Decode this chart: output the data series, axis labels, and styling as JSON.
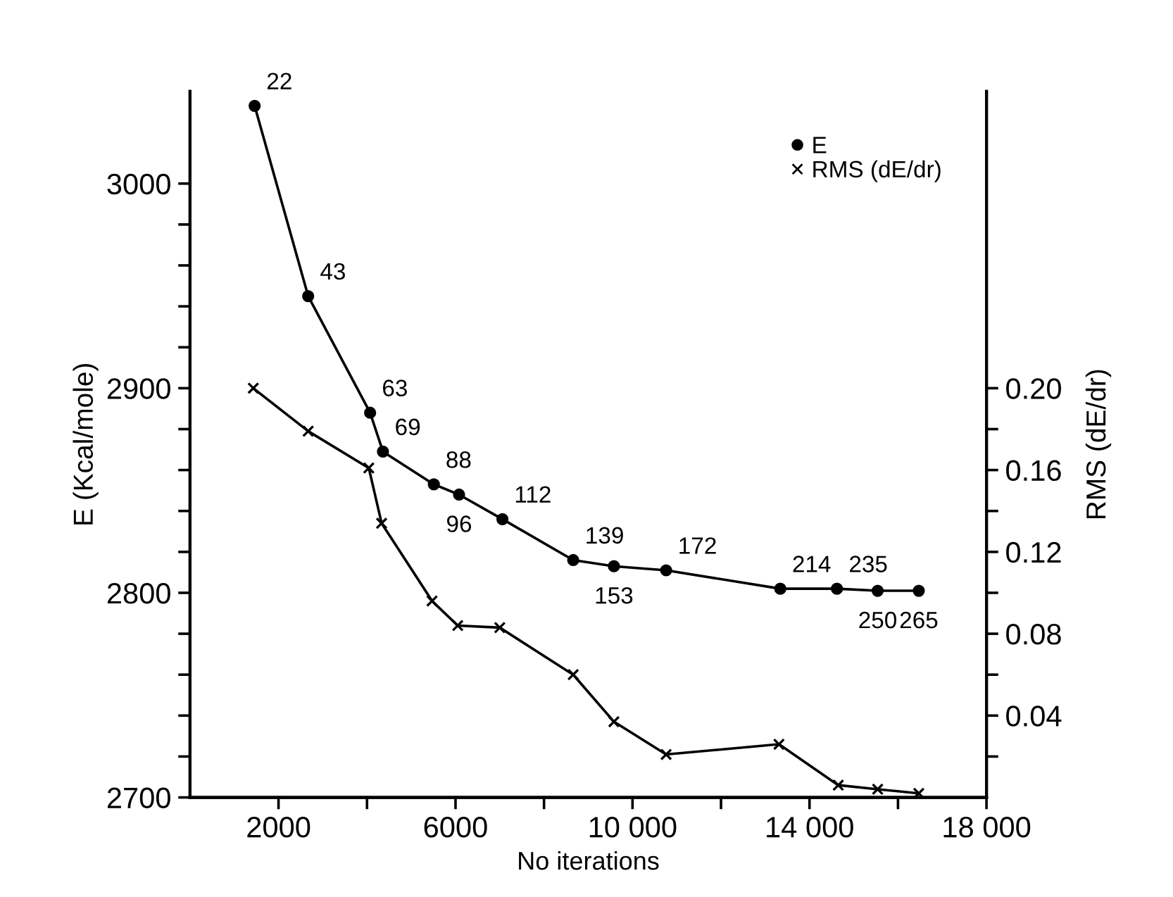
{
  "chart_data": {
    "type": "line",
    "xlabel": "No iterations",
    "ylabel": "E (Kcal/mole)",
    "y2label": "RMS (dE/dr)",
    "xlim": [
      0,
      18000
    ],
    "xticks": [
      2000,
      {
        "value": 4000,
        "label": null
      },
      6000,
      {
        "value": 8000,
        "label": null
      },
      {
        "value": 10000,
        "label": "10 000"
      },
      {
        "value": 12000,
        "label": null
      },
      {
        "value": 14000,
        "label": "14 000"
      },
      {
        "value": 16000,
        "label": null
      },
      {
        "value": 18000,
        "label": "18 000"
      }
    ],
    "ylim": [
      2700,
      3045
    ],
    "yticks": [
      2700,
      {
        "value": 2720,
        "label": null
      },
      {
        "value": 2740,
        "label": null
      },
      {
        "value": 2760,
        "label": null
      },
      {
        "value": 2780,
        "label": null
      },
      2800,
      {
        "value": 2820,
        "label": null
      },
      {
        "value": 2840,
        "label": null
      },
      {
        "value": 2860,
        "label": null
      },
      {
        "value": 2880,
        "label": null
      },
      2900,
      {
        "value": 2920,
        "label": null
      },
      {
        "value": 2940,
        "label": null
      },
      {
        "value": 2960,
        "label": null
      },
      {
        "value": 2980,
        "label": null
      },
      3000
    ],
    "y2lim": [
      0,
      0.345
    ],
    "y2ticks": [
      {
        "value": 0.02,
        "label": null
      },
      0.04,
      {
        "value": 0.06,
        "label": null
      },
      0.08,
      {
        "value": 0.1,
        "label": null
      },
      0.12,
      {
        "value": 0.14,
        "label": null
      },
      0.16,
      {
        "value": 0.18,
        "label": null
      },
      {
        "value": 0.2,
        "label": "0.20"
      }
    ],
    "legend": "top right",
    "grid": false,
    "series": [
      {
        "name": "E",
        "color": "#000000",
        "marker": "circle",
        "x": [
          1460,
          2670,
          4070,
          4360,
          5510,
          6080,
          7060,
          8660,
          9580,
          10760,
          13340,
          14620,
          15540,
          16470
        ],
        "values": [
          3038,
          2945,
          2888,
          2869,
          2853,
          2848,
          2836,
          2816,
          2813,
          2811,
          2802,
          2802,
          2801,
          2801
        ]
      },
      {
        "name": "RMS (dE/dr)",
        "color": "#000000",
        "marker": "cross",
        "axis": "y2",
        "x": [
          1430,
          2670,
          4040,
          4330,
          5470,
          6050,
          7000,
          8660,
          9580,
          10760,
          13310,
          14650,
          15540,
          16470
        ],
        "values": [
          0.2,
          0.179,
          0.161,
          0.134,
          0.096,
          0.084,
          0.083,
          0.06,
          0.037,
          0.021,
          0.026,
          0.006,
          0.004,
          0.002
        ]
      }
    ],
    "annotations": [
      {
        "text": "22",
        "x": 1460,
        "y": 3038
      },
      {
        "text": "43",
        "x": 2670,
        "y": 2945
      },
      {
        "text": "63",
        "x": 4070,
        "y": 2888
      },
      {
        "text": "69",
        "x": 4360,
        "y": 2869
      },
      {
        "text": "88",
        "x": 5510,
        "y": 2853
      },
      {
        "text": "96",
        "x": 6080,
        "y": 2848
      },
      {
        "text": "112",
        "x": 7060,
        "y": 2836
      },
      {
        "text": "139",
        "x": 8660,
        "y": 2816
      },
      {
        "text": "153",
        "x": 9580,
        "y": 2813
      },
      {
        "text": "172",
        "x": 10760,
        "y": 2811
      },
      {
        "text": "214",
        "x": 13340,
        "y": 2802
      },
      {
        "text": "235",
        "x": 14620,
        "y": 2802
      },
      {
        "text": "250",
        "x": 15540,
        "y": 2801
      },
      {
        "text": "265",
        "x": 16470,
        "y": 2801
      }
    ]
  }
}
